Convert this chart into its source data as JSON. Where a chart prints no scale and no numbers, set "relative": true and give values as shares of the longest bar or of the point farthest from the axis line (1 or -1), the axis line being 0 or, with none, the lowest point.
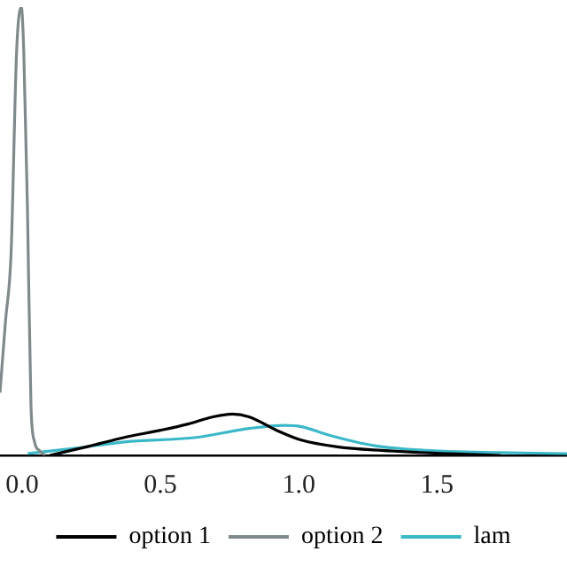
{
  "chart_data": {
    "type": "line",
    "relative": true,
    "xlim": [
      -0.08,
      1.97
    ],
    "xticks": [
      {
        "value": 0,
        "label": "0.0"
      },
      {
        "value": 0.5,
        "label": "0.5"
      },
      {
        "value": 1,
        "label": "1.0"
      },
      {
        "value": 1.5,
        "label": "1.5"
      }
    ],
    "legend": "bottom",
    "grid": false,
    "marker": "none",
    "line_style": "solid",
    "series": [
      {
        "name": "option 1",
        "color": "#000000",
        "x": [
          0.1,
          0.24,
          0.37,
          0.5,
          0.6,
          0.69,
          0.76,
          0.82,
          0.92,
          1.01,
          1.14,
          1.3,
          1.53,
          1.73
        ],
        "values": [
          0,
          0.02,
          0.04,
          0.056,
          0.07,
          0.086,
          0.092,
          0.086,
          0.056,
          0.034,
          0.019,
          0.011,
          0.004,
          0
        ]
      },
      {
        "name": "option 2",
        "color": "#808a8a",
        "x": [
          -0.08,
          -0.06,
          -0.04,
          -0.02,
          -0.003,
          0.006,
          0.019,
          0.032,
          0.045,
          0.064,
          0.083
        ],
        "values": [
          0.14,
          0.3,
          0.45,
          0.9,
          1,
          0.9,
          0.56,
          0.11,
          0.03,
          0.01,
          0
        ]
      },
      {
        "name": "lam",
        "color": "#3bb8c8",
        "x": [
          0.02,
          0.18,
          0.37,
          0.63,
          0.82,
          0.95,
          1.01,
          1.11,
          1.27,
          1.46,
          1.72,
          1.97
        ],
        "values": [
          0.004,
          0.015,
          0.03,
          0.04,
          0.06,
          0.067,
          0.064,
          0.045,
          0.022,
          0.011,
          0.006,
          0.004
        ]
      }
    ]
  }
}
